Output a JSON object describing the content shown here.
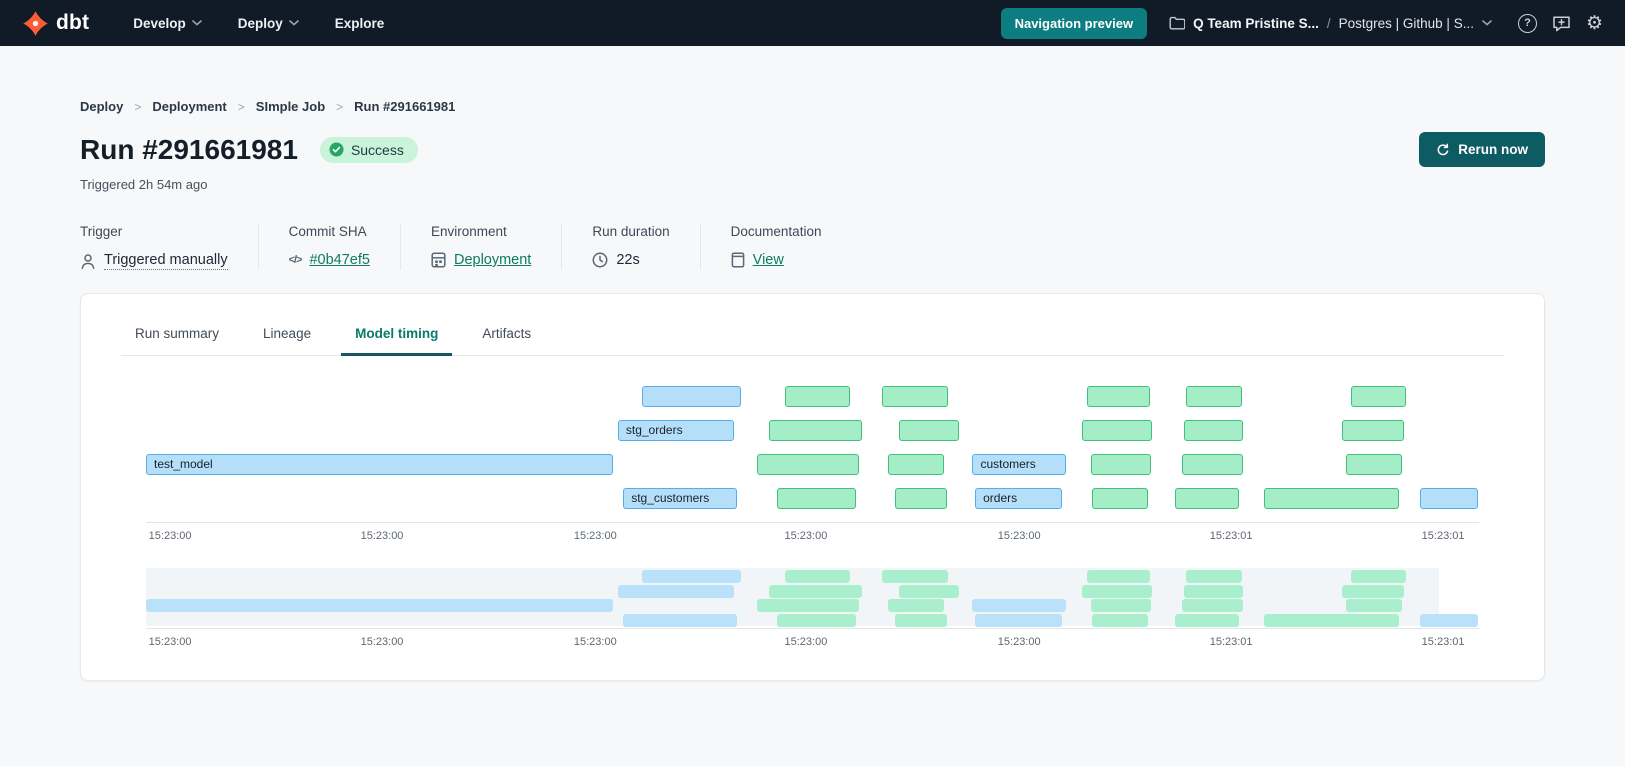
{
  "topnav": {
    "logo_text": "dbt",
    "items": [
      {
        "label": "Develop",
        "chevron": true
      },
      {
        "label": "Deploy",
        "chevron": true
      },
      {
        "label": "Explore",
        "chevron": false
      }
    ],
    "preview_button": "Navigation preview",
    "account_name": "Q Team Pristine S...",
    "separator": "/",
    "project_name": "Postgres | Github | S...",
    "icons": {
      "help": "?",
      "gear": "⚙"
    }
  },
  "breadcrumb": {
    "items": [
      "Deploy",
      "Deployment",
      "SImple Job",
      "Run #291661981"
    ],
    "separator": ">"
  },
  "header": {
    "title": "Run #291661981",
    "status": "Success",
    "triggered": "Triggered 2h 54m ago",
    "rerun_label": "Rerun now"
  },
  "meta": [
    {
      "label": "Trigger",
      "value": "Triggered manually",
      "icon": "person-icon"
    },
    {
      "label": "Commit SHA",
      "value": "#0b47ef5",
      "icon": "code-icon"
    },
    {
      "label": "Environment",
      "value": "Deployment",
      "icon": "database-icon"
    },
    {
      "label": "Run duration",
      "value": "22s",
      "icon": "clock-icon"
    },
    {
      "label": "Documentation",
      "value": "View",
      "icon": "document-icon"
    }
  ],
  "tabs": [
    {
      "label": "Run summary",
      "active": false
    },
    {
      "label": "Lineage",
      "active": false
    },
    {
      "label": "Model timing",
      "active": true
    },
    {
      "label": "Artifacts",
      "active": false
    }
  ],
  "colors": {
    "brand_orange": "#ff5c35",
    "topnav_bg": "#101b27",
    "preview_button_bg": "#0c7e82",
    "rerun_button_bg": "#0d5b63",
    "success_badge_bg": "#c9f4da",
    "success_check": "#2aa565",
    "link": "#0d7b5f",
    "active_tab_text": "#0a7a6c",
    "active_tab_underline": "#17565e",
    "bar_blue_fill": "#b5def8",
    "bar_blue_border": "#55ade9",
    "bar_green_fill": "#a5edc6",
    "bar_green_border": "#3fc07c",
    "minimap_bg": "#f2f5f7"
  },
  "chart_data": {
    "type": "gantt",
    "title": "Model timing",
    "axis_ticks": [
      {
        "x_pct": 0.2,
        "label": "15:23:00"
      },
      {
        "x_pct": 16.1,
        "label": "15:23:00"
      },
      {
        "x_pct": 32.1,
        "label": "15:23:00"
      },
      {
        "x_pct": 47.9,
        "label": "15:23:00"
      },
      {
        "x_pct": 63.9,
        "label": "15:23:00"
      },
      {
        "x_pct": 79.8,
        "label": "15:23:01"
      },
      {
        "x_pct": 95.7,
        "label": "15:23:01"
      }
    ],
    "rows": [
      {
        "bars": [
          {
            "color": "blue",
            "label": "",
            "start_pct": 37.2,
            "end_pct": 44.6
          },
          {
            "color": "green",
            "label": "",
            "start_pct": 47.9,
            "end_pct": 52.8
          },
          {
            "color": "green",
            "label": "",
            "start_pct": 55.2,
            "end_pct": 60.2
          },
          {
            "color": "green",
            "label": "",
            "start_pct": 70.6,
            "end_pct": 75.3
          },
          {
            "color": "green",
            "label": "",
            "start_pct": 78.0,
            "end_pct": 82.2
          },
          {
            "color": "green",
            "label": "",
            "start_pct": 90.4,
            "end_pct": 94.5
          }
        ]
      },
      {
        "bars": [
          {
            "color": "blue",
            "label": "stg_orders",
            "start_pct": 35.4,
            "end_pct": 44.1
          },
          {
            "color": "green",
            "label": "",
            "start_pct": 46.7,
            "end_pct": 53.7
          },
          {
            "color": "green",
            "label": "",
            "start_pct": 56.5,
            "end_pct": 61.0
          },
          {
            "color": "green",
            "label": "",
            "start_pct": 70.2,
            "end_pct": 75.5
          },
          {
            "color": "green",
            "label": "",
            "start_pct": 77.9,
            "end_pct": 82.3
          },
          {
            "color": "green",
            "label": "",
            "start_pct": 89.7,
            "end_pct": 94.4
          }
        ]
      },
      {
        "bars": [
          {
            "color": "blue",
            "label": "test_model",
            "start_pct": 0.0,
            "end_pct": 35.0
          },
          {
            "color": "green",
            "label": "",
            "start_pct": 45.8,
            "end_pct": 53.5
          },
          {
            "color": "green",
            "label": "",
            "start_pct": 55.7,
            "end_pct": 59.9
          },
          {
            "color": "blue",
            "label": "customers",
            "start_pct": 62.0,
            "end_pct": 69.0
          },
          {
            "color": "green",
            "label": "",
            "start_pct": 70.9,
            "end_pct": 75.4
          },
          {
            "color": "green",
            "label": "",
            "start_pct": 77.7,
            "end_pct": 82.3
          },
          {
            "color": "green",
            "label": "",
            "start_pct": 90.0,
            "end_pct": 94.2
          }
        ]
      },
      {
        "bars": [
          {
            "color": "blue",
            "label": "stg_customers",
            "start_pct": 35.8,
            "end_pct": 44.3
          },
          {
            "color": "green",
            "label": "",
            "start_pct": 47.3,
            "end_pct": 53.3
          },
          {
            "color": "green",
            "label": "",
            "start_pct": 56.2,
            "end_pct": 60.1
          },
          {
            "color": "blue",
            "label": "orders",
            "start_pct": 62.2,
            "end_pct": 68.7
          },
          {
            "color": "green",
            "label": "",
            "start_pct": 71.0,
            "end_pct": 75.2
          },
          {
            "color": "green",
            "label": "",
            "start_pct": 77.2,
            "end_pct": 82.0
          },
          {
            "color": "green",
            "label": "",
            "start_pct": 83.9,
            "end_pct": 94.0
          },
          {
            "color": "blue",
            "label": "",
            "start_pct": 95.6,
            "end_pct": 99.9
          }
        ]
      }
    ],
    "minimap": {
      "panel_width_pct": 97,
      "mirrors_rows": true
    }
  }
}
